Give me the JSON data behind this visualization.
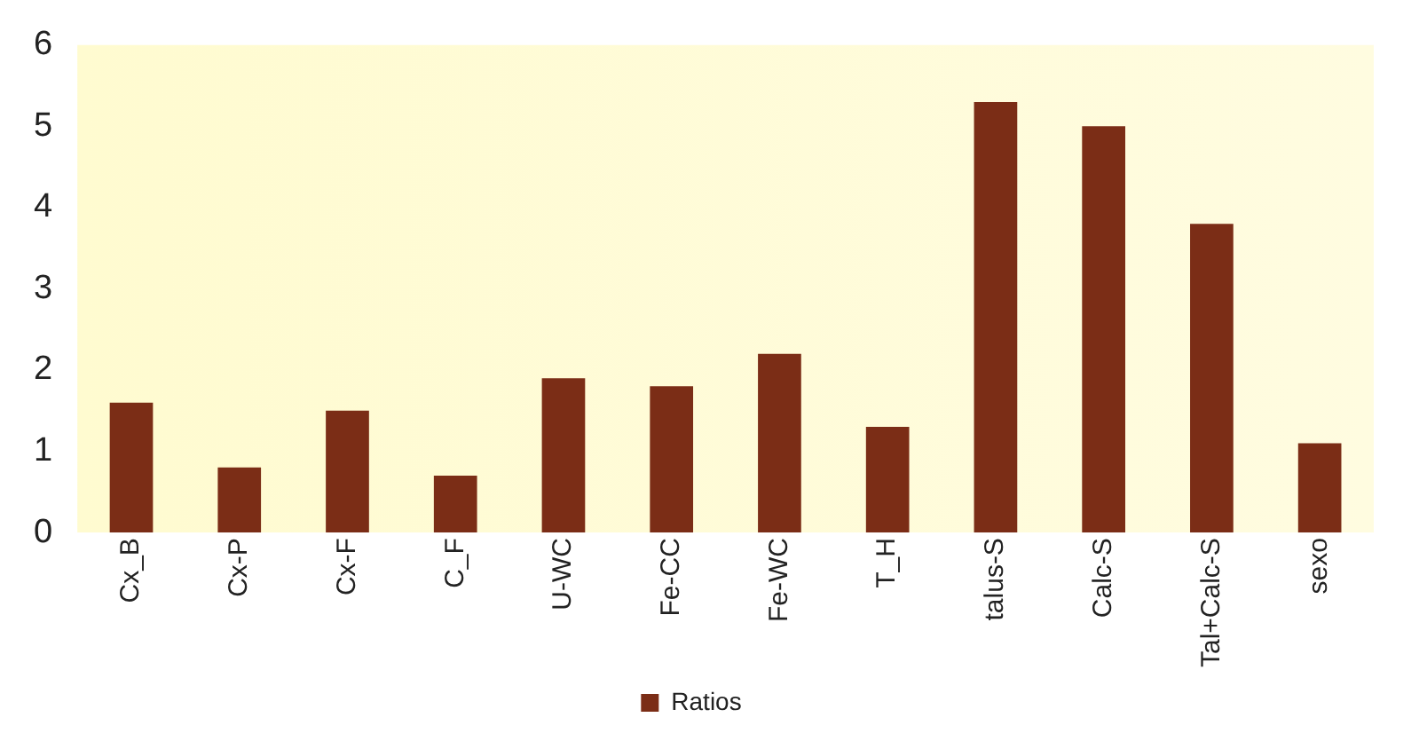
{
  "chart_data": {
    "type": "bar",
    "categories": [
      "Cx_B",
      "Cx-P",
      "Cx-F",
      "C_F",
      "U-WC",
      "Fe-CC",
      "Fe-WC",
      "T_H",
      "talus-S",
      "Calc-S",
      "Tal+Calc-S",
      "sexo"
    ],
    "series": [
      {
        "name": "Ratios",
        "color": "#7b2d16",
        "values": [
          1.6,
          0.8,
          1.5,
          0.7,
          1.9,
          1.8,
          2.2,
          1.3,
          5.3,
          5.0,
          3.8,
          1.1
        ]
      }
    ],
    "ylim": [
      0,
      6
    ],
    "yticks": [
      0,
      1,
      2,
      3,
      4,
      5,
      6
    ],
    "grid": false,
    "legend": "bottom"
  }
}
